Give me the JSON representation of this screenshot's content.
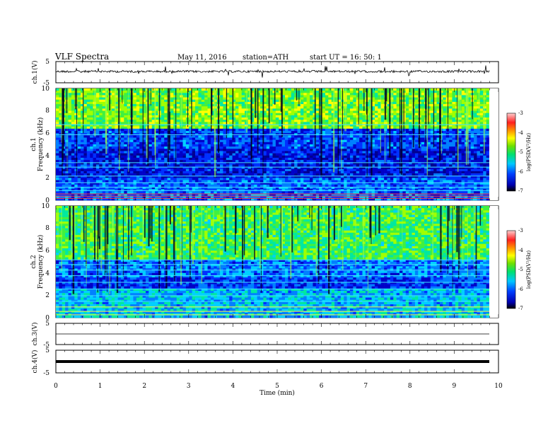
{
  "header": {
    "title": "VLF  Spectra",
    "date": "May 11, 2016",
    "station": "station=ATH",
    "start": "start  UT =   16: 50: 1"
  },
  "chart_data": [
    {
      "type": "line",
      "name": "ch1-waveform",
      "ylabel": "ch.1(V)",
      "ylim": [
        -5,
        5
      ],
      "yticks": [
        "5",
        "-5"
      ],
      "xlim": [
        0,
        10
      ]
    },
    {
      "type": "heatmap",
      "name": "ch1-spectrogram",
      "ylabel": "ch.1\nFrequency (kHz)",
      "ylabel_line1": "ch.1",
      "ylabel_line2": "Frequency  (kHz)",
      "ylim": [
        0,
        10
      ],
      "yticks": [
        "0",
        "2",
        "4",
        "6",
        "8",
        "10"
      ],
      "xlim": [
        0,
        9.8
      ],
      "colorbar": {
        "label": "log(PSD(V²/Hz)",
        "range": [
          -7,
          -3
        ],
        "ticks": [
          "-3",
          "-4",
          "-5",
          "-6",
          "-7"
        ]
      }
    },
    {
      "type": "heatmap",
      "name": "ch2-spectrogram",
      "ylabel_line1": "ch.2",
      "ylabel_line2": "Frequency  (kHz)",
      "ylim": [
        0,
        10
      ],
      "yticks": [
        "0",
        "2",
        "4",
        "6",
        "8",
        "10"
      ],
      "xlim": [
        0,
        9.8
      ],
      "colorbar": {
        "label": "log(PSD(V²/Hz)",
        "range": [
          -7,
          -3
        ],
        "ticks": [
          "-3",
          "-4",
          "-5",
          "-6",
          "-7"
        ]
      }
    },
    {
      "type": "line",
      "name": "ch3-waveform",
      "ylabel": "ch.3(V)",
      "ylim": [
        -5,
        5
      ],
      "yticks": [
        "5",
        "-5"
      ],
      "value": 0
    },
    {
      "type": "line",
      "name": "ch4-waveform",
      "ylabel": "ch.4(V)",
      "ylim": [
        -5,
        5
      ],
      "yticks": [
        "5",
        "-5"
      ],
      "value": 0
    }
  ],
  "xaxis": {
    "label": "Time  (min)",
    "range": [
      0,
      10
    ],
    "ticks": [
      "0",
      "1",
      "2",
      "3",
      "4",
      "5",
      "6",
      "7",
      "8",
      "9",
      "10"
    ]
  }
}
